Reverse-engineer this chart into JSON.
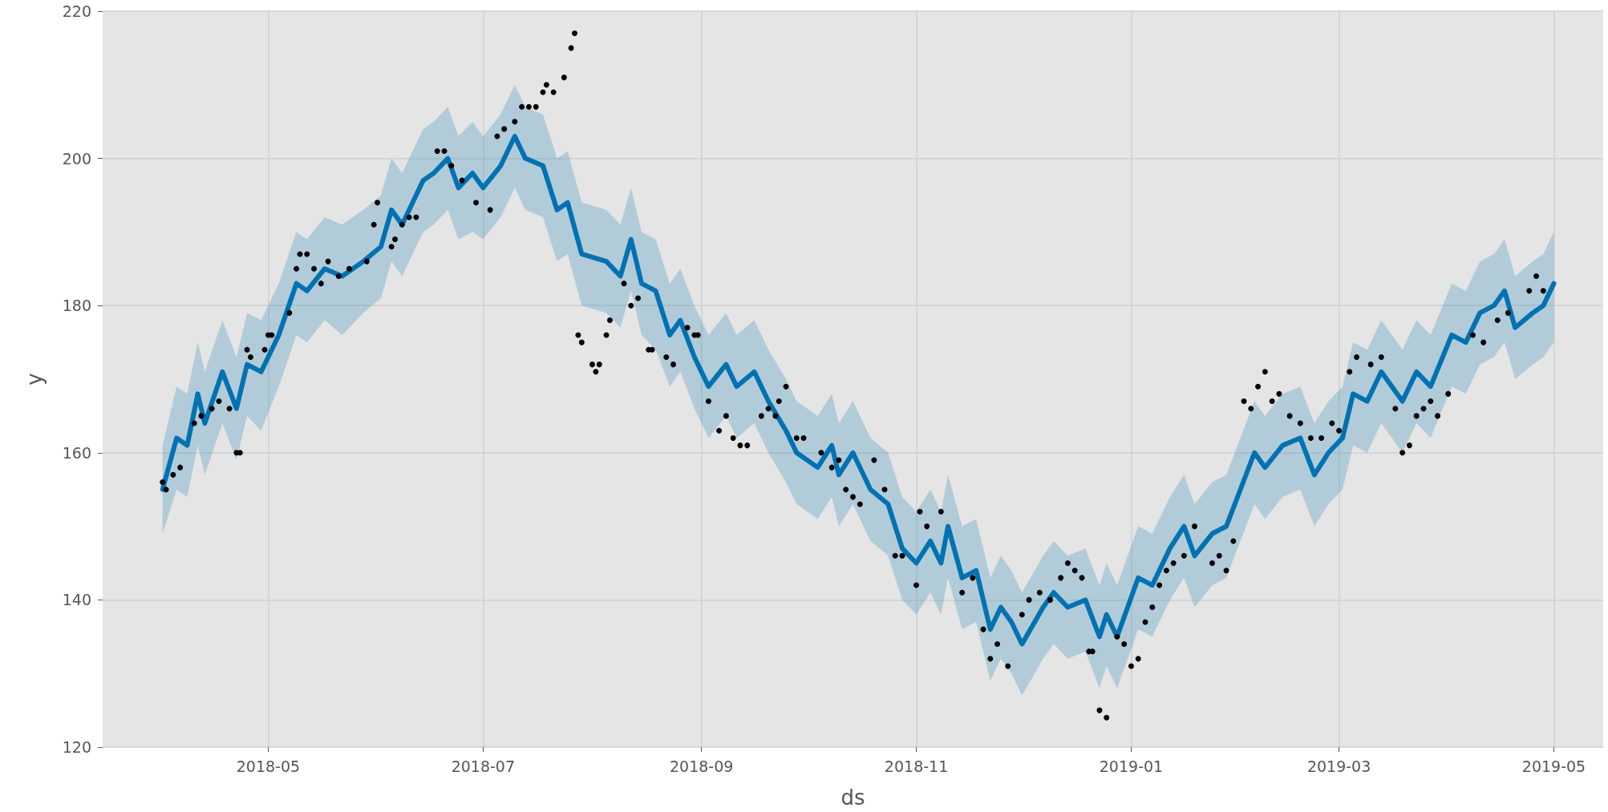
{
  "chart_data": {
    "type": "scatter",
    "xlabel": "ds",
    "ylabel": "y",
    "xlim": [
      "2018-03-15",
      "2019-05-15"
    ],
    "xticks": [
      "2018-05",
      "2018-07",
      "2018-09",
      "2018-11",
      "2019-01",
      "2019-03",
      "2019-05"
    ],
    "ylim": [
      120,
      220
    ],
    "yticks": [
      120,
      140,
      160,
      180,
      200,
      220
    ],
    "grid": true,
    "series": [
      {
        "type": "line",
        "color": "#0072b2",
        "marker": "none",
        "line_style": "solid",
        "x": [
          "2018-04-01",
          "2018-04-05",
          "2018-04-08",
          "2018-04-11",
          "2018-04-13",
          "2018-04-18",
          "2018-04-22",
          "2018-04-25",
          "2018-04-29",
          "2018-05-04",
          "2018-05-09",
          "2018-05-12",
          "2018-05-17",
          "2018-05-22",
          "2018-05-28",
          "2018-06-02",
          "2018-06-05",
          "2018-06-08",
          "2018-06-14",
          "2018-06-17",
          "2018-06-21",
          "2018-06-24",
          "2018-06-28",
          "2018-07-01",
          "2018-07-06",
          "2018-07-10",
          "2018-07-13",
          "2018-07-18",
          "2018-07-22",
          "2018-07-25",
          "2018-07-29",
          "2018-08-05",
          "2018-08-09",
          "2018-08-12",
          "2018-08-15",
          "2018-08-19",
          "2018-08-23",
          "2018-08-26",
          "2018-08-30",
          "2018-09-03",
          "2018-09-08",
          "2018-09-11",
          "2018-09-16",
          "2018-09-20",
          "2018-09-25",
          "2018-09-28",
          "2018-10-04",
          "2018-10-08",
          "2018-10-10",
          "2018-10-14",
          "2018-10-19",
          "2018-10-24",
          "2018-10-28",
          "2018-11-01",
          "2018-11-05",
          "2018-11-08",
          "2018-11-10",
          "2018-11-14",
          "2018-11-18",
          "2018-11-22",
          "2018-11-25",
          "2018-11-28",
          "2018-12-01",
          "2018-12-07",
          "2018-12-10",
          "2018-12-14",
          "2018-12-19",
          "2018-12-23",
          "2018-12-25",
          "2018-12-28",
          "2019-01-03",
          "2019-01-07",
          "2019-01-12",
          "2019-01-16",
          "2019-01-19",
          "2019-01-24",
          "2019-01-28",
          "2019-02-01",
          "2019-02-05",
          "2019-02-08",
          "2019-02-13",
          "2019-02-18",
          "2019-02-22",
          "2019-02-26",
          "2019-03-02",
          "2019-03-05",
          "2019-03-09",
          "2019-03-13",
          "2019-03-19",
          "2019-03-23",
          "2019-03-27",
          "2019-04-02",
          "2019-04-06",
          "2019-04-10",
          "2019-04-14",
          "2019-04-17",
          "2019-04-20",
          "2019-04-25",
          "2019-04-28",
          "2019-05-01"
        ],
        "values": [
          155,
          162,
          161,
          168,
          164,
          171,
          166,
          172,
          171,
          176,
          183,
          182,
          185,
          184,
          186,
          188,
          193,
          191,
          197,
          198,
          200,
          196,
          198,
          196,
          199,
          203,
          200,
          199,
          193,
          194,
          187,
          186,
          184,
          189,
          183,
          182,
          176,
          178,
          173,
          169,
          172,
          169,
          171,
          167,
          163,
          160,
          158,
          161,
          157,
          160,
          155,
          153,
          147,
          145,
          148,
          145,
          150,
          143,
          144,
          136,
          139,
          137,
          134,
          139,
          141,
          139,
          140,
          135,
          138,
          135,
          143,
          142,
          147,
          150,
          146,
          149,
          150,
          155,
          160,
          158,
          161,
          162,
          157,
          160,
          162,
          168,
          167,
          171,
          167,
          171,
          169,
          176,
          175,
          179,
          180,
          182,
          177,
          179,
          180,
          183
        ],
        "lower": [
          149,
          155,
          154,
          161,
          157,
          164,
          159,
          165,
          163,
          169,
          176,
          175,
          178,
          176,
          179,
          181,
          186,
          184,
          190,
          191,
          193,
          189,
          190,
          189,
          192,
          196,
          193,
          192,
          186,
          187,
          180,
          179,
          177,
          182,
          176,
          174,
          169,
          171,
          166,
          162,
          165,
          162,
          164,
          160,
          156,
          153,
          151,
          154,
          150,
          153,
          148,
          146,
          140,
          138,
          141,
          138,
          143,
          136,
          137,
          129,
          132,
          130,
          127,
          132,
          134,
          132,
          133,
          128,
          131,
          128,
          136,
          135,
          140,
          143,
          139,
          142,
          143,
          148,
          153,
          151,
          154,
          155,
          150,
          153,
          155,
          161,
          160,
          164,
          160,
          164,
          162,
          169,
          168,
          172,
          173,
          175,
          170,
          172,
          173,
          175
        ],
        "upper": [
          161,
          169,
          168,
          175,
          171,
          178,
          173,
          179,
          178,
          183,
          190,
          189,
          192,
          191,
          193,
          195,
          200,
          198,
          204,
          205,
          207,
          203,
          205,
          203,
          206,
          210,
          207,
          206,
          200,
          201,
          194,
          193,
          191,
          196,
          190,
          189,
          183,
          185,
          180,
          176,
          179,
          176,
          178,
          174,
          170,
          167,
          165,
          168,
          164,
          167,
          162,
          160,
          154,
          152,
          155,
          152,
          157,
          150,
          151,
          143,
          146,
          144,
          141,
          146,
          148,
          146,
          147,
          142,
          145,
          142,
          150,
          149,
          154,
          157,
          153,
          156,
          157,
          162,
          167,
          165,
          168,
          169,
          164,
          167,
          169,
          175,
          174,
          178,
          174,
          178,
          176,
          183,
          182,
          186,
          187,
          189,
          184,
          186,
          187,
          190
        ]
      },
      {
        "color": "#000000",
        "marker": "circle",
        "x": [
          "2018-04-01",
          "2018-04-02",
          "2018-04-04",
          "2018-04-06",
          "2018-04-10",
          "2018-04-12",
          "2018-04-15",
          "2018-04-17",
          "2018-04-20",
          "2018-04-22",
          "2018-04-23",
          "2018-04-25",
          "2018-04-26",
          "2018-04-30",
          "2018-05-01",
          "2018-05-02",
          "2018-05-07",
          "2018-05-09",
          "2018-05-10",
          "2018-05-12",
          "2018-05-14",
          "2018-05-16",
          "2018-05-18",
          "2018-05-21",
          "2018-05-24",
          "2018-05-29",
          "2018-05-31",
          "2018-06-01",
          "2018-06-05",
          "2018-06-06",
          "2018-06-08",
          "2018-06-10",
          "2018-06-12",
          "2018-06-18",
          "2018-06-20",
          "2018-06-22",
          "2018-06-25",
          "2018-06-29",
          "2018-07-03",
          "2018-07-05",
          "2018-07-07",
          "2018-07-10",
          "2018-07-12",
          "2018-07-14",
          "2018-07-16",
          "2018-07-18",
          "2018-07-19",
          "2018-07-21",
          "2018-07-24",
          "2018-07-26",
          "2018-07-27",
          "2018-07-28",
          "2018-07-29",
          "2018-08-01",
          "2018-08-02",
          "2018-08-03",
          "2018-08-05",
          "2018-08-06",
          "2018-08-10",
          "2018-08-12",
          "2018-08-14",
          "2018-08-17",
          "2018-08-18",
          "2018-08-22",
          "2018-08-24",
          "2018-08-28",
          "2018-08-30",
          "2018-08-31",
          "2018-09-03",
          "2018-09-06",
          "2018-09-08",
          "2018-09-10",
          "2018-09-12",
          "2018-09-14",
          "2018-09-18",
          "2018-09-20",
          "2018-09-22",
          "2018-09-23",
          "2018-09-25",
          "2018-09-28",
          "2018-09-30",
          "2018-10-05",
          "2018-10-08",
          "2018-10-10",
          "2018-10-12",
          "2018-10-14",
          "2018-10-16",
          "2018-10-20",
          "2018-10-23",
          "2018-10-26",
          "2018-10-28",
          "2018-11-01",
          "2018-11-02",
          "2018-11-04",
          "2018-11-08",
          "2018-11-14",
          "2018-11-17",
          "2018-11-20",
          "2018-11-22",
          "2018-11-24",
          "2018-11-27",
          "2018-12-01",
          "2018-12-03",
          "2018-12-06",
          "2018-12-09",
          "2018-12-12",
          "2018-12-14",
          "2018-12-16",
          "2018-12-18",
          "2018-12-20",
          "2018-12-21",
          "2018-12-23",
          "2018-12-25",
          "2018-12-28",
          "2018-12-30",
          "2019-01-01",
          "2019-01-03",
          "2019-01-05",
          "2019-01-07",
          "2019-01-09",
          "2019-01-11",
          "2019-01-13",
          "2019-01-16",
          "2019-01-19",
          "2019-01-24",
          "2019-01-26",
          "2019-01-28",
          "2019-01-30",
          "2019-02-02",
          "2019-02-04",
          "2019-02-06",
          "2019-02-08",
          "2019-02-10",
          "2019-02-12",
          "2019-02-15",
          "2019-02-18",
          "2019-02-21",
          "2019-02-24",
          "2019-02-27",
          "2019-03-01",
          "2019-03-04",
          "2019-03-06",
          "2019-03-10",
          "2019-03-13",
          "2019-03-17",
          "2019-03-19",
          "2019-03-21",
          "2019-03-23",
          "2019-03-25",
          "2019-03-27",
          "2019-03-29",
          "2019-04-01",
          "2019-04-08",
          "2019-04-11",
          "2019-04-15",
          "2019-04-18",
          "2019-04-24",
          "2019-04-26",
          "2019-04-28"
        ],
        "values": [
          156,
          155,
          157,
          158,
          164,
          165,
          166,
          167,
          166,
          160,
          160,
          174,
          173,
          174,
          176,
          176,
          179,
          185,
          187,
          187,
          185,
          183,
          186,
          184,
          185,
          186,
          191,
          194,
          188,
          189,
          191,
          192,
          192,
          201,
          201,
          199,
          197,
          194,
          193,
          203,
          204,
          205,
          207,
          207,
          207,
          209,
          210,
          209,
          211,
          215,
          217,
          176,
          175,
          172,
          171,
          172,
          176,
          178,
          183,
          180,
          181,
          174,
          174,
          173,
          172,
          177,
          176,
          176,
          167,
          163,
          165,
          162,
          161,
          161,
          165,
          166,
          165,
          167,
          169,
          162,
          162,
          160,
          158,
          159,
          155,
          154,
          153,
          159,
          155,
          146,
          146,
          142,
          152,
          150,
          152,
          141,
          143,
          136,
          132,
          134,
          131,
          138,
          140,
          141,
          140,
          143,
          145,
          144,
          143,
          133,
          133,
          125,
          124,
          135,
          134,
          131,
          132,
          137,
          139,
          142,
          144,
          145,
          146,
          150,
          145,
          146,
          144,
          148,
          167,
          166,
          169,
          171,
          167,
          168,
          165,
          164,
          162,
          162,
          164,
          163,
          171,
          173,
          172,
          173,
          166,
          160,
          161,
          165,
          166,
          167,
          165,
          168,
          176,
          175,
          178,
          179,
          182,
          184,
          182
        ]
      }
    ]
  }
}
